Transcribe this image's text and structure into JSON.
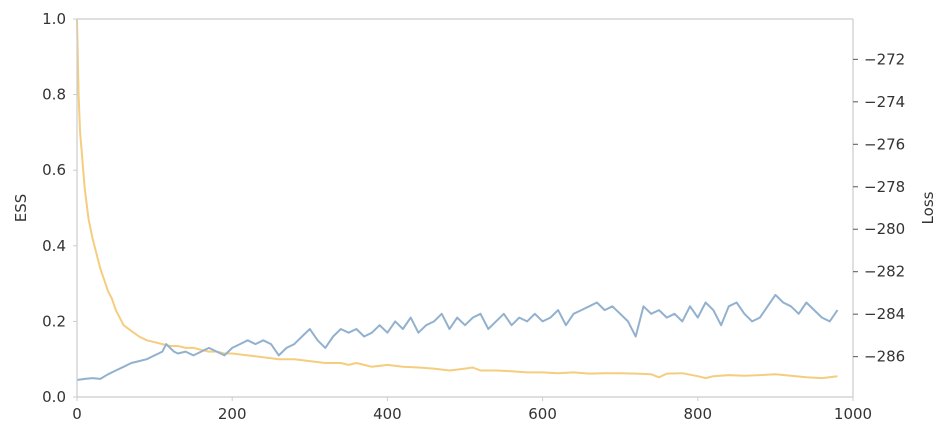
{
  "chart_data": {
    "type": "line",
    "xlabel": "",
    "xlim": [
      0,
      1000
    ],
    "xticks": [
      "0",
      "200",
      "400",
      "600",
      "800",
      "1000"
    ],
    "grid": false,
    "left_axis": {
      "label": "ESS",
      "ylim": [
        0.0,
        1.0
      ],
      "ticks": [
        "0.0",
        "0.2",
        "0.4",
        "0.6",
        "0.8",
        "1.0"
      ]
    },
    "right_axis": {
      "label": "Loss",
      "ylim": [
        -287.9,
        -270.1
      ],
      "ticks": [
        "−272",
        "−274",
        "−276",
        "−278",
        "−280",
        "−282",
        "−284",
        "−286"
      ],
      "tick_values": [
        -272,
        -274,
        -276,
        -278,
        -280,
        -282,
        -284,
        -286
      ]
    },
    "series": [
      {
        "axis": "left",
        "color": "#f5cd7f",
        "x": [
          0,
          2,
          4,
          6,
          8,
          10,
          15,
          20,
          25,
          30,
          35,
          40,
          45,
          50,
          55,
          60,
          70,
          80,
          90,
          100,
          110,
          120,
          130,
          140,
          150,
          160,
          170,
          180,
          190,
          200,
          220,
          240,
          260,
          280,
          300,
          320,
          340,
          350,
          360,
          370,
          380,
          400,
          420,
          440,
          460,
          480,
          500,
          510,
          520,
          540,
          560,
          580,
          600,
          620,
          640,
          660,
          680,
          700,
          720,
          740,
          750,
          760,
          780,
          800,
          810,
          820,
          840,
          860,
          880,
          900,
          920,
          940,
          960,
          980
        ],
        "y": [
          1.0,
          0.8,
          0.7,
          0.65,
          0.6,
          0.55,
          0.47,
          0.42,
          0.38,
          0.34,
          0.31,
          0.28,
          0.26,
          0.23,
          0.21,
          0.19,
          0.175,
          0.16,
          0.15,
          0.145,
          0.14,
          0.135,
          0.135,
          0.13,
          0.13,
          0.125,
          0.12,
          0.12,
          0.115,
          0.115,
          0.11,
          0.105,
          0.1,
          0.1,
          0.095,
          0.09,
          0.09,
          0.085,
          0.09,
          0.085,
          0.08,
          0.085,
          0.08,
          0.078,
          0.075,
          0.07,
          0.075,
          0.078,
          0.07,
          0.07,
          0.068,
          0.065,
          0.065,
          0.063,
          0.065,
          0.062,
          0.063,
          0.063,
          0.062,
          0.06,
          0.052,
          0.062,
          0.063,
          0.055,
          0.05,
          0.055,
          0.058,
          0.056,
          0.058,
          0.06,
          0.056,
          0.052,
          0.05,
          0.055
        ]
      },
      {
        "axis": "left",
        "color": "#92b1cf",
        "x": [
          0,
          10,
          20,
          30,
          40,
          50,
          60,
          70,
          80,
          90,
          100,
          110,
          115,
          120,
          125,
          130,
          140,
          150,
          160,
          170,
          180,
          190,
          200,
          210,
          220,
          230,
          240,
          250,
          260,
          270,
          280,
          290,
          300,
          310,
          320,
          330,
          340,
          350,
          360,
          370,
          380,
          390,
          400,
          410,
          420,
          430,
          440,
          450,
          460,
          470,
          480,
          490,
          500,
          510,
          520,
          530,
          540,
          550,
          560,
          570,
          580,
          590,
          600,
          610,
          620,
          630,
          640,
          650,
          660,
          670,
          680,
          690,
          700,
          710,
          720,
          730,
          740,
          750,
          760,
          770,
          780,
          790,
          800,
          810,
          820,
          830,
          840,
          850,
          860,
          870,
          880,
          890,
          900,
          910,
          920,
          930,
          940,
          950,
          960,
          970,
          980
        ],
        "y": [
          0.045,
          0.048,
          0.05,
          0.048,
          0.06,
          0.07,
          0.08,
          0.09,
          0.095,
          0.1,
          0.11,
          0.12,
          0.14,
          0.13,
          0.12,
          0.115,
          0.12,
          0.11,
          0.12,
          0.13,
          0.12,
          0.11,
          0.13,
          0.14,
          0.15,
          0.14,
          0.15,
          0.14,
          0.11,
          0.13,
          0.14,
          0.16,
          0.18,
          0.15,
          0.13,
          0.16,
          0.18,
          0.17,
          0.18,
          0.16,
          0.17,
          0.19,
          0.17,
          0.2,
          0.18,
          0.21,
          0.17,
          0.19,
          0.2,
          0.22,
          0.18,
          0.21,
          0.19,
          0.21,
          0.22,
          0.18,
          0.2,
          0.22,
          0.19,
          0.21,
          0.2,
          0.22,
          0.2,
          0.21,
          0.23,
          0.19,
          0.22,
          0.23,
          0.24,
          0.25,
          0.23,
          0.24,
          0.22,
          0.2,
          0.16,
          0.24,
          0.22,
          0.23,
          0.21,
          0.22,
          0.2,
          0.24,
          0.21,
          0.25,
          0.23,
          0.19,
          0.24,
          0.25,
          0.22,
          0.2,
          0.21,
          0.24,
          0.27,
          0.25,
          0.24,
          0.22,
          0.25,
          0.23,
          0.21,
          0.2,
          0.23
        ]
      }
    ]
  }
}
